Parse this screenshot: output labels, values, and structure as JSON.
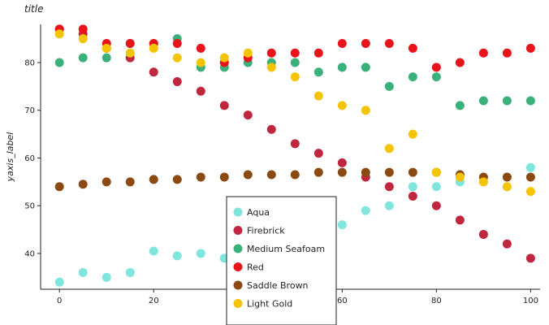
{
  "chart_data": {
    "type": "scatter",
    "title": "title",
    "xlabel": "xaxis_label",
    "ylabel": "yaxis_label",
    "xlim": [
      -4,
      102
    ],
    "ylim": [
      32.5,
      88
    ],
    "xticks": [
      0,
      20,
      40,
      60,
      80,
      100
    ],
    "yticks": [
      40,
      50,
      60,
      70,
      80
    ],
    "grid": false,
    "legend_position": "bottom-center",
    "series": [
      {
        "name": "Aqua",
        "color": "#7fe5dd",
        "x": [
          0,
          5,
          10,
          15,
          20,
          25,
          30,
          35,
          40,
          45,
          50,
          55,
          60,
          65,
          70,
          75,
          80,
          85,
          90,
          95,
          100
        ],
        "y": [
          34,
          36,
          35,
          36,
          40.5,
          39.5,
          40,
          39,
          44,
          44,
          45,
          46,
          46,
          49,
          50,
          54,
          54,
          55,
          55,
          56,
          58
        ]
      },
      {
        "name": "Firebrick",
        "color": "#c0273f",
        "x": [
          0,
          5,
          10,
          15,
          20,
          25,
          30,
          35,
          40,
          45,
          50,
          55,
          60,
          65,
          70,
          75,
          80,
          85,
          90,
          95,
          100
        ],
        "y": [
          87,
          86,
          83,
          81,
          78,
          76,
          74,
          71,
          69,
          66,
          63,
          61,
          59,
          56,
          54,
          52,
          50,
          47,
          44,
          42,
          39
        ]
      },
      {
        "name": "Medium Seafoam",
        "color": "#3ab07a",
        "x": [
          0,
          5,
          10,
          15,
          20,
          25,
          30,
          35,
          40,
          45,
          50,
          55,
          60,
          65,
          70,
          75,
          80,
          85,
          90,
          95,
          100
        ],
        "y": [
          80,
          81,
          81,
          84,
          84,
          85,
          79,
          79,
          80,
          80,
          80,
          78,
          79,
          79,
          75,
          77,
          77,
          71,
          72,
          72,
          72
        ]
      },
      {
        "name": "Red",
        "color": "#e8131b",
        "x": [
          0,
          5,
          10,
          15,
          20,
          25,
          30,
          35,
          40,
          45,
          50,
          55,
          60,
          65,
          70,
          75,
          80,
          85,
          90,
          95,
          100
        ],
        "y": [
          87,
          87,
          84,
          84,
          84,
          84,
          83,
          80,
          81,
          82,
          82,
          82,
          84,
          84,
          84,
          83,
          79,
          80,
          82,
          82,
          83
        ]
      },
      {
        "name": "Saddle Brown",
        "color": "#8b4a11",
        "x": [
          0,
          5,
          10,
          15,
          20,
          25,
          30,
          35,
          40,
          45,
          50,
          55,
          60,
          65,
          70,
          75,
          80,
          85,
          90,
          95,
          100
        ],
        "y": [
          54,
          54.5,
          55,
          55,
          55.5,
          55.5,
          56,
          56,
          56.5,
          56.5,
          56.5,
          57,
          57,
          57,
          57,
          57,
          57,
          56.5,
          56,
          56,
          56
        ]
      },
      {
        "name": "Light Gold",
        "color": "#f5c400",
        "x": [
          0,
          5,
          10,
          15,
          20,
          25,
          30,
          35,
          40,
          45,
          50,
          55,
          60,
          65,
          70,
          75,
          80,
          85,
          90,
          95,
          100
        ],
        "y": [
          86,
          85,
          83,
          82,
          83,
          81,
          80,
          81,
          82,
          79,
          77,
          73,
          71,
          70,
          62,
          65,
          57,
          56,
          55,
          54,
          53
        ]
      }
    ]
  }
}
